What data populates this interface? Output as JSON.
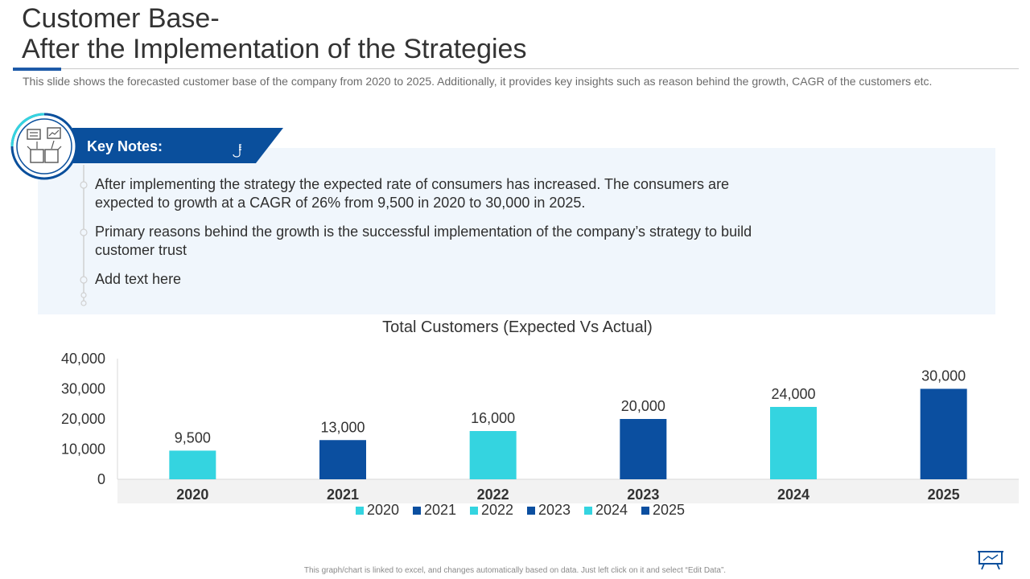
{
  "header": {
    "title_line1": "Customer Base-",
    "title_line2": "After the Implementation of the Strategies",
    "subtitle": "This slide shows the forecasted customer base of the company from 2020 to 2025. Additionally, it provides key insights such as reason behind the growth, CAGR of the customers etc."
  },
  "notes": {
    "title": "Key Notes:",
    "items": [
      "After implementing the strategy the expected rate of consumers has increased. The consumers are expected to growth at a CAGR of 26% from 9,500 in 2020 to 30,000 in 2025.",
      "Primary reasons behind the growth is the successful implementation of the company’s strategy to build customer trust",
      "Add text here"
    ]
  },
  "colors": {
    "light": "#34d4e0",
    "dark": "#0b4fa0",
    "banner": "#0a4f9c"
  },
  "chart_data": {
    "type": "bar",
    "title": "Total Customers (Expected Vs Actual)",
    "categories": [
      "2020",
      "2021",
      "2022",
      "2023",
      "2024",
      "2025"
    ],
    "values": [
      9500,
      13000,
      16000,
      20000,
      24000,
      30000
    ],
    "value_labels": [
      "9,500",
      "13,000",
      "16,000",
      "20,000",
      "24,000",
      "30,000"
    ],
    "bar_colors": [
      "#34d4e0",
      "#0b4fa0",
      "#34d4e0",
      "#0b4fa0",
      "#34d4e0",
      "#0b4fa0"
    ],
    "ylim": [
      0,
      40000
    ],
    "yticks": [
      0,
      10000,
      20000,
      30000,
      40000
    ],
    "ytick_labels": [
      "0",
      "10,000",
      "20,000",
      "30,000",
      "40,000"
    ],
    "legend": [
      "2020",
      "2021",
      "2022",
      "2023",
      "2024",
      "2025"
    ],
    "legend_position": "bottom",
    "xlabel": "",
    "ylabel": ""
  },
  "footer": {
    "text": "This graph/chart is linked to excel, and changes automatically based on data. Just left click on it and select “Edit Data”."
  }
}
